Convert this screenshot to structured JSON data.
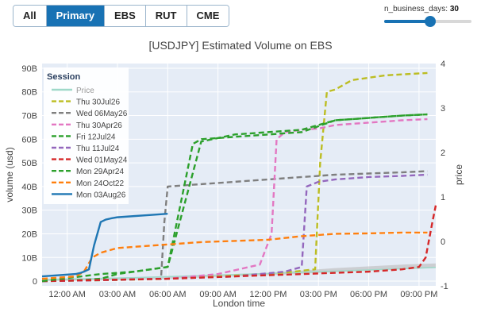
{
  "filters": {
    "buttons": [
      {
        "label": "All",
        "active": false
      },
      {
        "label": "Primary",
        "active": true
      },
      {
        "label": "EBS",
        "active": false
      },
      {
        "label": "RUT",
        "active": false
      },
      {
        "label": "CME",
        "active": false
      }
    ]
  },
  "slider": {
    "label": "n_business_days:",
    "value": "30",
    "min": 1,
    "max": 50,
    "fraction": 0.55
  },
  "colors": {
    "accent": "#1872b4"
  },
  "chart_data": {
    "type": "line",
    "title": "[USDJPY] Estimated Volume on EBS",
    "xlabel": "London time",
    "ylabel": "volume (usd)",
    "y2label": "price",
    "xlim": [
      -1.5,
      22.0
    ],
    "ylim": [
      -2,
      92
    ],
    "y2lim": [
      -1,
      4
    ],
    "y_ticks": [
      0,
      10,
      20,
      30,
      40,
      50,
      60,
      70,
      80,
      90
    ],
    "y_tick_labels": [
      "0",
      "10B",
      "20B",
      "30B",
      "40B",
      "50B",
      "60B",
      "70B",
      "80B",
      "90B"
    ],
    "y2_ticks": [
      -1,
      0,
      1,
      2,
      3,
      4
    ],
    "y2_tick_labels": [
      "-1",
      "0",
      "1",
      "2",
      "3",
      "4"
    ],
    "x_ticks": [
      0,
      3,
      6,
      9,
      12,
      15,
      18,
      21
    ],
    "x_tick_labels": [
      "12:00 AM",
      "03:00 AM",
      "06:00 AM",
      "09:00 AM",
      "12:00 PM",
      "03:00 PM",
      "06:00 PM",
      "09:00 PM"
    ],
    "grid": true,
    "legend": {
      "title": "Session",
      "placement": "top-left"
    },
    "price_band": {
      "x": [
        -1.5,
        4,
        8,
        12,
        16,
        20,
        22
      ],
      "low": [
        0,
        0.5,
        1.5,
        2.5,
        3.8,
        5,
        5.5
      ],
      "high": [
        1,
        1.5,
        2.5,
        3.5,
        5.5,
        7,
        7.5
      ],
      "color": "#bbbbbb"
    },
    "series": [
      {
        "name": "Price",
        "color": "#9fd9c9",
        "dash": "solid",
        "x": [
          -1.5,
          4,
          10,
          16,
          22
        ],
        "y": [
          0.5,
          1.5,
          2.8,
          4.2,
          5.8
        ]
      },
      {
        "name": "Thu 30Jul26",
        "color": "#bcbd22",
        "dash": "dashed",
        "x": [
          -1.5,
          3,
          6,
          9,
          12,
          13.5,
          14.8,
          15.1,
          15.5,
          16,
          17,
          19,
          21.5
        ],
        "y": [
          0,
          0.5,
          1,
          2,
          3,
          4,
          5,
          50,
          80,
          81,
          85,
          87,
          88
        ]
      },
      {
        "name": "Wed 06May26",
        "color": "#7f7f7f",
        "dash": "dashed",
        "x": [
          -1.5,
          3,
          5.6,
          5.8,
          6,
          8,
          10,
          12,
          14,
          16,
          18,
          20,
          21.5
        ],
        "y": [
          0,
          0.5,
          1,
          25,
          40,
          41,
          42,
          43,
          44,
          45,
          45.5,
          46,
          46.5
        ]
      },
      {
        "name": "Thu 30Apr26",
        "color": "#e377c2",
        "dash": "dashed",
        "x": [
          -1.5,
          6,
          9,
          11.5,
          12.2,
          12.5,
          13,
          14,
          15,
          16,
          18,
          20,
          21.5
        ],
        "y": [
          0,
          1,
          3,
          7,
          20,
          60,
          63,
          64,
          64.5,
          66,
          67,
          68,
          68.5
        ]
      },
      {
        "name": "Fri 12Jul24",
        "color": "#2ca02c",
        "dash": "dashed",
        "x": [
          -1.5,
          1,
          2,
          3,
          4,
          5,
          6,
          7.5,
          8,
          10,
          12,
          14,
          16,
          18,
          20,
          21.5
        ],
        "y": [
          0,
          0.5,
          1,
          3,
          4,
          5,
          6,
          58,
          60,
          61,
          62,
          63,
          68,
          69,
          70,
          70.5
        ]
      },
      {
        "name": "Thu 11Jul24",
        "color": "#9467bd",
        "dash": "dashed",
        "x": [
          -1.5,
          6,
          10,
          13,
          14,
          14.3,
          15,
          16,
          18,
          20,
          21.5
        ],
        "y": [
          0,
          1,
          2,
          4,
          6,
          40,
          42,
          43,
          44,
          44.5,
          45
        ]
      },
      {
        "name": "Wed 01May24",
        "color": "#d62728",
        "dash": "dashed",
        "x": [
          -1.5,
          6,
          10,
          14,
          18,
          20,
          21,
          21.4,
          21.8,
          22
        ],
        "y": [
          0,
          1,
          2,
          3,
          4,
          5,
          6,
          10,
          25,
          32
        ]
      },
      {
        "name": "Mon 29Apr24",
        "color": "#2ca02c",
        "dash": "dashed",
        "x": [
          -1.5,
          2,
          4,
          6,
          8,
          10,
          12,
          14,
          16,
          18,
          20,
          21.5
        ],
        "y": [
          0,
          3,
          4,
          6,
          59,
          62,
          63,
          64,
          68,
          69,
          70,
          70.5
        ]
      },
      {
        "name": "Mon 24Oct22",
        "color": "#ff7f0e",
        "dash": "dashed",
        "x": [
          -1.5,
          0.5,
          1,
          1.5,
          2,
          3,
          4,
          5,
          6,
          8,
          10,
          12,
          14,
          16,
          18,
          20,
          21.5
        ],
        "y": [
          1,
          2,
          4,
          10,
          12,
          14,
          14.5,
          15,
          15.5,
          16.5,
          17,
          17.5,
          19,
          20,
          20.2,
          20.5,
          20.5
        ]
      },
      {
        "name": "Mon 03Aug26",
        "color": "#1f77b4",
        "dash": "solid",
        "x": [
          -1.5,
          -0.5,
          0.5,
          0.8,
          1,
          1.3,
          1.6,
          2,
          2.3,
          2.6,
          3,
          4,
          5,
          6
        ],
        "y": [
          2,
          2.5,
          3,
          3.5,
          4,
          5,
          15,
          25,
          26,
          26.5,
          27,
          27.5,
          28,
          28.5
        ]
      }
    ]
  }
}
